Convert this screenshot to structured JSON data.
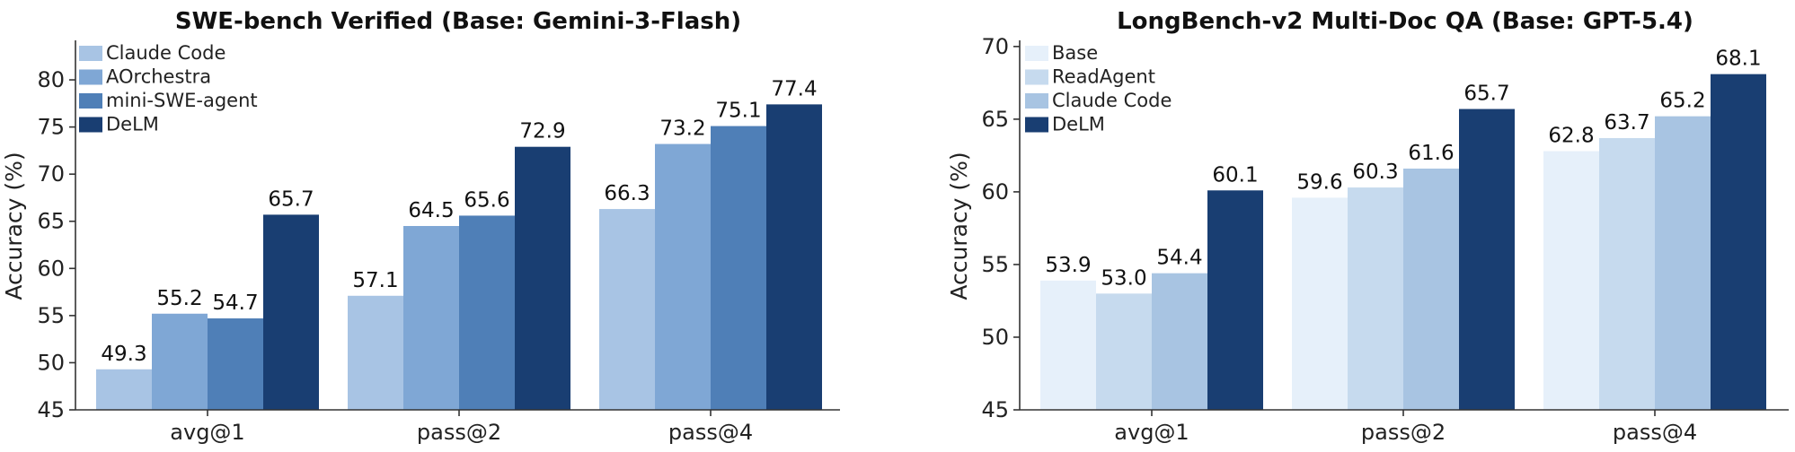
{
  "chart_data": [
    {
      "type": "bar",
      "title": "SWE-bench Verified (Base: Gemini-3-Flash)",
      "xlabel": "",
      "ylabel": "Accuracy (%)",
      "ylim": [
        45,
        84
      ],
      "yticks": [
        "45",
        "50",
        "55",
        "60",
        "65",
        "70",
        "75",
        "80"
      ],
      "categories": [
        "avg@1",
        "pass@2",
        "pass@4"
      ],
      "legend_position": "top-left",
      "grid": false,
      "series": [
        {
          "name": "Claude Code",
          "color": "#a8c4e4",
          "values": [
            49.3,
            57.1,
            66.3
          ],
          "labels": [
            "49.3",
            "57.1",
            "66.3"
          ]
        },
        {
          "name": "AOrchestra",
          "color": "#7fa7d5",
          "values": [
            55.2,
            64.5,
            73.2
          ],
          "labels": [
            "55.2",
            "64.5",
            "73.2"
          ]
        },
        {
          "name": "mini-SWE-agent",
          "color": "#4f7fb7",
          "values": [
            54.7,
            65.6,
            75.1
          ],
          "labels": [
            "54.7",
            "65.6",
            "75.1"
          ]
        },
        {
          "name": "DeLM",
          "color": "#193e72",
          "values": [
            65.7,
            72.9,
            77.4
          ],
          "labels": [
            "65.7",
            "72.9",
            "77.4"
          ]
        }
      ]
    },
    {
      "type": "bar",
      "title": "LongBench-v2 Multi-Doc QA (Base: GPT-5.4)",
      "xlabel": "",
      "ylabel": "Accuracy (%)",
      "ylim": [
        45,
        70.3
      ],
      "yticks": [
        "45",
        "50",
        "55",
        "60",
        "65",
        "70"
      ],
      "categories": [
        "avg@1",
        "pass@2",
        "pass@4"
      ],
      "legend_position": "top-left",
      "grid": false,
      "series": [
        {
          "name": "Base",
          "color": "#e6f0fa",
          "values": [
            53.9,
            59.6,
            62.8
          ],
          "labels": [
            "53.9",
            "59.6",
            "62.8"
          ]
        },
        {
          "name": "ReadAgent",
          "color": "#c6daee",
          "values": [
            53.0,
            60.3,
            63.7
          ],
          "labels": [
            "53.0",
            "60.3",
            "63.7"
          ]
        },
        {
          "name": "Claude Code",
          "color": "#a8c4e2",
          "values": [
            54.4,
            61.6,
            65.2
          ],
          "labels": [
            "54.4",
            "61.6",
            "65.2"
          ]
        },
        {
          "name": "DeLM",
          "color": "#193e72",
          "values": [
            60.1,
            65.7,
            68.1
          ],
          "labels": [
            "60.1",
            "65.7",
            "68.1"
          ]
        }
      ]
    }
  ]
}
